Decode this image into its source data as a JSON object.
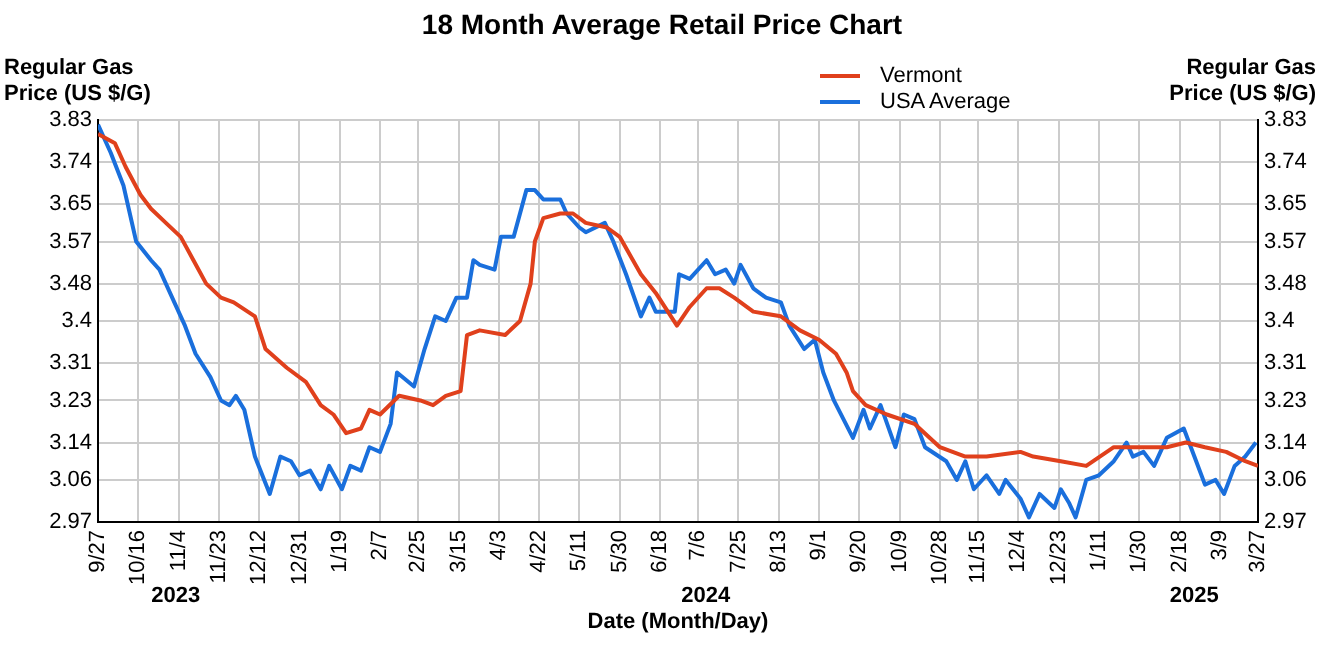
{
  "chart_data": {
    "type": "line",
    "title": "18 Month Average Retail Price Chart",
    "xlabel": "Date (Month/Day)",
    "ylabel": "Regular Gas\nPrice (US $/G)",
    "y2label": "Regular Gas\nPrice (US $/G)",
    "legend": "top right",
    "grid": true,
    "marker": "none",
    "line_style": "solid",
    "xlim": [
      "2023-09-27",
      "2025-03-27"
    ],
    "xticks": [
      {
        "value": "2023-09-27",
        "label": "9/27"
      },
      {
        "value": "2023-10-16",
        "label": "10/16"
      },
      {
        "value": "2023-11-04",
        "label": "11/4"
      },
      {
        "value": "2023-11-23",
        "label": "11/23"
      },
      {
        "value": "2023-12-12",
        "label": "12/12"
      },
      {
        "value": "2023-12-31",
        "label": "12/31"
      },
      {
        "value": "2024-01-19",
        "label": "1/19"
      },
      {
        "value": "2024-02-07",
        "label": "2/7"
      },
      {
        "value": "2024-02-25",
        "label": "2/25"
      },
      {
        "value": "2024-03-15",
        "label": "3/15"
      },
      {
        "value": "2024-04-03",
        "label": "4/3"
      },
      {
        "value": "2024-04-22",
        "label": "4/22"
      },
      {
        "value": "2024-05-11",
        "label": "5/11"
      },
      {
        "value": "2024-05-30",
        "label": "5/30"
      },
      {
        "value": "2024-06-18",
        "label": "6/18"
      },
      {
        "value": "2024-07-06",
        "label": "7/6"
      },
      {
        "value": "2024-07-25",
        "label": "7/25"
      },
      {
        "value": "2024-08-13",
        "label": "8/13"
      },
      {
        "value": "2024-09-01",
        "label": "9/1"
      },
      {
        "value": "2024-09-20",
        "label": "9/20"
      },
      {
        "value": "2024-10-09",
        "label": "10/9"
      },
      {
        "value": "2024-10-28",
        "label": "10/28"
      },
      {
        "value": "2024-11-15",
        "label": "11/15"
      },
      {
        "value": "2024-12-04",
        "label": "12/4"
      },
      {
        "value": "2024-12-23",
        "label": "12/23"
      },
      {
        "value": "2025-01-11",
        "label": "1/11"
      },
      {
        "value": "2025-01-30",
        "label": "1/30"
      },
      {
        "value": "2025-02-18",
        "label": "2/18"
      },
      {
        "value": "2025-03-09",
        "label": "3/9"
      },
      {
        "value": "2025-03-27",
        "label": "3/27"
      }
    ],
    "ylim": [
      2.97,
      3.83
    ],
    "yticks": [
      2.97,
      3.06,
      3.14,
      3.23,
      3.31,
      3.4,
      3.48,
      3.57,
      3.65,
      3.74,
      3.83
    ],
    "y2lim": [
      2.97,
      3.83
    ],
    "y2ticks": [
      2.97,
      3.06,
      3.14,
      3.23,
      3.31,
      3.4,
      3.48,
      3.57,
      3.65,
      3.74,
      3.83
    ],
    "annotations": [
      "2023",
      "2024",
      "2025"
    ],
    "series": [
      {
        "name": "Vermont",
        "color": "#e0401c",
        "x": [
          "2023-09-27",
          "2023-10-05",
          "2023-10-10",
          "2023-10-17",
          "2023-10-22",
          "2023-10-29",
          "2023-11-05",
          "2023-11-11",
          "2023-11-17",
          "2023-11-24",
          "2023-11-30",
          "2023-12-10",
          "2023-12-15",
          "2023-12-25",
          "2024-01-03",
          "2024-01-10",
          "2024-01-16",
          "2024-01-22",
          "2024-01-29",
          "2024-02-02",
          "2024-02-07",
          "2024-02-16",
          "2024-02-26",
          "2024-03-03",
          "2024-03-09",
          "2024-03-16",
          "2024-03-19",
          "2024-03-25",
          "2024-04-06",
          "2024-04-13",
          "2024-04-18",
          "2024-04-20",
          "2024-04-24",
          "2024-05-02",
          "2024-05-08",
          "2024-05-14",
          "2024-05-24",
          "2024-05-30",
          "2024-06-09",
          "2024-06-16",
          "2024-06-26",
          "2024-07-02",
          "2024-07-10",
          "2024-07-16",
          "2024-07-23",
          "2024-08-01",
          "2024-08-14",
          "2024-08-23",
          "2024-09-01",
          "2024-09-09",
          "2024-09-14",
          "2024-09-17",
          "2024-09-23",
          "2024-10-03",
          "2024-10-16",
          "2024-10-28",
          "2024-11-09",
          "2024-11-19",
          "2024-12-05",
          "2024-12-11",
          "2024-12-24",
          "2025-01-05",
          "2025-01-18",
          "2025-01-30",
          "2025-02-12",
          "2025-02-21",
          "2025-03-02",
          "2025-03-12",
          "2025-03-21",
          "2025-03-27"
        ],
        "values": [
          3.8,
          3.78,
          3.73,
          3.67,
          3.64,
          3.61,
          3.58,
          3.53,
          3.48,
          3.45,
          3.44,
          3.41,
          3.34,
          3.3,
          3.27,
          3.22,
          3.2,
          3.16,
          3.17,
          3.21,
          3.2,
          3.24,
          3.23,
          3.22,
          3.24,
          3.25,
          3.37,
          3.38,
          3.37,
          3.4,
          3.48,
          3.57,
          3.62,
          3.63,
          3.63,
          3.61,
          3.6,
          3.58,
          3.5,
          3.46,
          3.39,
          3.43,
          3.47,
          3.47,
          3.45,
          3.42,
          3.41,
          3.38,
          3.36,
          3.33,
          3.29,
          3.25,
          3.22,
          3.2,
          3.18,
          3.13,
          3.11,
          3.11,
          3.12,
          3.11,
          3.1,
          3.09,
          3.13,
          3.13,
          3.13,
          3.14,
          3.13,
          3.12,
          3.1,
          3.09
        ]
      },
      {
        "name": "USA Average",
        "color": "#1a6fdc",
        "x": [
          "2023-09-27",
          "2023-10-03",
          "2023-10-09",
          "2023-10-15",
          "2023-10-22",
          "2023-10-26",
          "2023-11-02",
          "2023-11-07",
          "2023-11-12",
          "2023-11-19",
          "2023-11-24",
          "2023-11-28",
          "2023-12-01",
          "2023-12-05",
          "2023-12-10",
          "2023-12-17",
          "2023-12-22",
          "2023-12-27",
          "2023-12-31",
          "2024-01-05",
          "2024-01-10",
          "2024-01-14",
          "2024-01-20",
          "2024-01-24",
          "2024-01-29",
          "2024-02-02",
          "2024-02-07",
          "2024-02-12",
          "2024-02-15",
          "2024-02-23",
          "2024-02-28",
          "2024-03-04",
          "2024-03-09",
          "2024-03-14",
          "2024-03-19",
          "2024-03-22",
          "2024-03-25",
          "2024-04-01",
          "2024-04-04",
          "2024-04-10",
          "2024-04-16",
          "2024-04-20",
          "2024-04-24",
          "2024-05-02",
          "2024-05-05",
          "2024-05-11",
          "2024-05-14",
          "2024-05-23",
          "2024-05-27",
          "2024-06-02",
          "2024-06-09",
          "2024-06-13",
          "2024-06-16",
          "2024-06-25",
          "2024-06-27",
          "2024-07-02",
          "2024-07-10",
          "2024-07-14",
          "2024-07-19",
          "2024-07-23",
          "2024-07-26",
          "2024-08-01",
          "2024-08-07",
          "2024-08-14",
          "2024-08-18",
          "2024-08-25",
          "2024-08-30",
          "2024-09-03",
          "2024-09-08",
          "2024-09-17",
          "2024-09-22",
          "2024-09-25",
          "2024-09-30",
          "2024-10-07",
          "2024-10-11",
          "2024-10-16",
          "2024-10-21",
          "2024-10-31",
          "2024-11-05",
          "2024-11-09",
          "2024-11-13",
          "2024-11-19",
          "2024-11-25",
          "2024-11-28",
          "2024-12-05",
          "2024-12-09",
          "2024-12-14",
          "2024-12-21",
          "2024-12-24",
          "2024-12-28",
          "2024-12-31",
          "2025-01-05",
          "2025-01-11",
          "2025-01-18",
          "2025-01-24",
          "2025-01-27",
          "2025-02-01",
          "2025-02-06",
          "2025-02-12",
          "2025-02-20",
          "2025-02-25",
          "2025-03-02",
          "2025-03-07",
          "2025-03-11",
          "2025-03-16",
          "2025-03-21",
          "2025-03-26"
        ],
        "values": [
          3.82,
          3.76,
          3.69,
          3.57,
          3.53,
          3.51,
          3.44,
          3.39,
          3.33,
          3.28,
          3.23,
          3.22,
          3.24,
          3.21,
          3.11,
          3.03,
          3.11,
          3.1,
          3.07,
          3.08,
          3.04,
          3.09,
          3.04,
          3.09,
          3.08,
          3.13,
          3.12,
          3.18,
          3.29,
          3.26,
          3.34,
          3.41,
          3.4,
          3.45,
          3.45,
          3.53,
          3.52,
          3.51,
          3.58,
          3.58,
          3.68,
          3.68,
          3.66,
          3.66,
          3.63,
          3.6,
          3.59,
          3.61,
          3.57,
          3.5,
          3.41,
          3.45,
          3.42,
          3.42,
          3.5,
          3.49,
          3.53,
          3.5,
          3.51,
          3.48,
          3.52,
          3.47,
          3.45,
          3.44,
          3.39,
          3.34,
          3.36,
          3.29,
          3.23,
          3.15,
          3.21,
          3.17,
          3.22,
          3.13,
          3.2,
          3.19,
          3.13,
          3.1,
          3.06,
          3.1,
          3.04,
          3.07,
          3.03,
          3.06,
          3.02,
          2.98,
          3.03,
          3.0,
          3.04,
          3.01,
          2.98,
          3.06,
          3.07,
          3.1,
          3.14,
          3.11,
          3.12,
          3.09,
          3.15,
          3.17,
          3.11,
          3.05,
          3.06,
          3.03,
          3.09,
          3.11,
          3.14
        ]
      }
    ]
  }
}
